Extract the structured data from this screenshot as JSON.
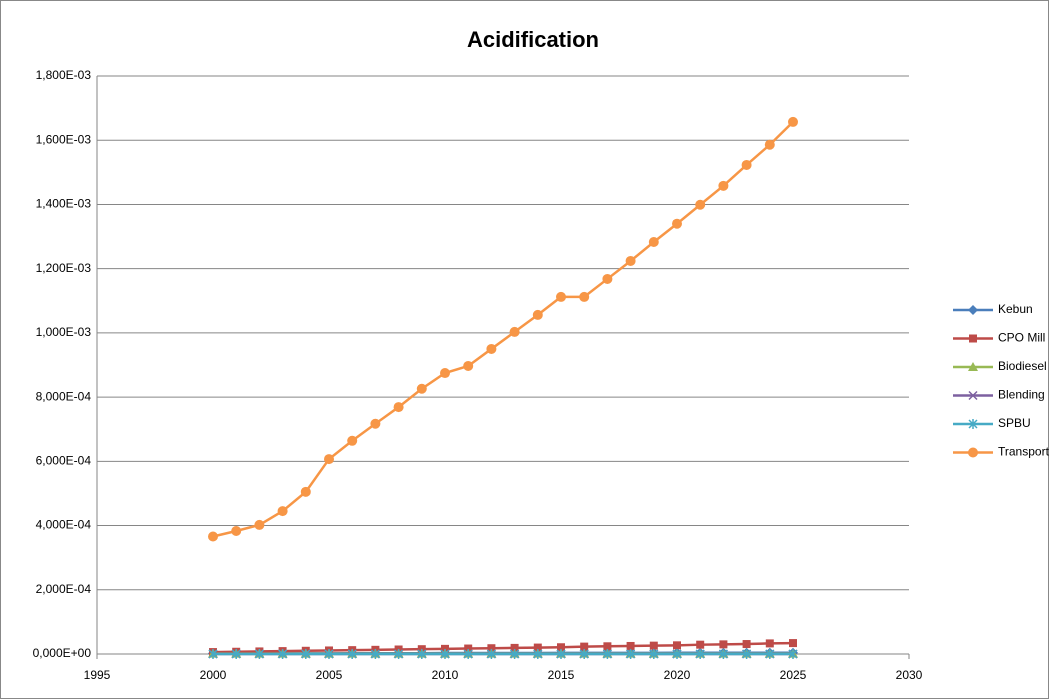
{
  "chart_data": {
    "type": "line",
    "title": "Acidification",
    "x": [
      2000,
      2001,
      2002,
      2003,
      2004,
      2005,
      2006,
      2007,
      2008,
      2009,
      2010,
      2011,
      2012,
      2013,
      2014,
      2015,
      2016,
      2017,
      2018,
      2019,
      2020,
      2021,
      2022,
      2023,
      2024,
      2025
    ],
    "xlim": [
      1995,
      2030
    ],
    "xticks": [
      1995,
      2000,
      2005,
      2010,
      2015,
      2020,
      2025,
      2030
    ],
    "ylim": [
      0,
      0.0018
    ],
    "yticks": [
      {
        "value": 0,
        "label": "0,000E+00"
      },
      {
        "value": 0.0002,
        "label": "2,000E-04"
      },
      {
        "value": 0.0004,
        "label": "4,000E-04"
      },
      {
        "value": 0.0006,
        "label": "6,000E-04"
      },
      {
        "value": 0.0008,
        "label": "8,000E-04"
      },
      {
        "value": 0.001,
        "label": "1,000E-03"
      },
      {
        "value": 0.0012,
        "label": "1,200E-03"
      },
      {
        "value": 0.0014,
        "label": "1,400E-03"
      },
      {
        "value": 0.0016,
        "label": "1,600E-03"
      },
      {
        "value": 0.0018,
        "label": "1,800E-03"
      }
    ],
    "grid": true,
    "legend": "right",
    "series": [
      {
        "name": "Kebun",
        "color": "#4a7ebb",
        "marker": "diamond",
        "values": [
          2e-06,
          2e-06,
          2e-06,
          2e-06,
          2e-06,
          2e-06,
          2.5e-06,
          2.5e-06,
          2.5e-06,
          2.5e-06,
          3e-06,
          3e-06,
          3e-06,
          3e-06,
          3e-06,
          3.5e-06,
          3.5e-06,
          3.5e-06,
          3.5e-06,
          3.5e-06,
          4e-06,
          4e-06,
          4e-06,
          4e-06,
          4e-06,
          4e-06
        ]
      },
      {
        "name": "CPO Mill",
        "color": "#be4b48",
        "marker": "square",
        "values": [
          6e-06,
          7e-06,
          8e-06,
          9e-06,
          1e-05,
          1.1e-05,
          1.2e-05,
          1.3e-05,
          1.4e-05,
          1.5e-05,
          1.6e-05,
          1.7e-05,
          1.8e-05,
          1.9e-05,
          2e-05,
          2.1e-05,
          2.3e-05,
          2.4e-05,
          2.5e-05,
          2.6e-05,
          2.7e-05,
          2.9e-05,
          3e-05,
          3.1e-05,
          3.3e-05,
          3.4e-05
        ]
      },
      {
        "name": "Biodiesel",
        "color": "#98b954",
        "marker": "triangle",
        "values": [
          1e-06,
          1e-06,
          1e-06,
          1e-06,
          1e-06,
          1e-06,
          1e-06,
          1e-06,
          1e-06,
          1e-06,
          1e-06,
          1e-06,
          1e-06,
          1e-06,
          1e-06,
          1e-06,
          1e-06,
          1e-06,
          1e-06,
          1e-06,
          1e-06,
          1e-06,
          1e-06,
          1e-06,
          1e-06,
          1e-06
        ]
      },
      {
        "name": "Blending",
        "color": "#7d60a0",
        "marker": "x",
        "values": [
          0,
          0,
          0,
          0,
          0,
          0,
          0,
          0,
          0,
          0,
          0,
          0,
          0,
          0,
          0,
          0,
          0,
          0,
          0,
          0,
          0,
          0,
          0,
          0,
          0,
          0
        ]
      },
      {
        "name": "SPBU",
        "color": "#46aac5",
        "marker": "star",
        "values": [
          0,
          0,
          0,
          0,
          0,
          0,
          0,
          0,
          0,
          0,
          0,
          0,
          0,
          0,
          0,
          0,
          0,
          0,
          0,
          0,
          0,
          0,
          0,
          0,
          0,
          0
        ]
      },
      {
        "name": "Transport",
        "color": "#f79646",
        "marker": "circle",
        "values": [
          0.000366,
          0.000383,
          0.000402,
          0.000445,
          0.000505,
          0.000607,
          0.000664,
          0.000717,
          0.000769,
          0.000826,
          0.000875,
          0.000897,
          0.00095,
          0.001003,
          0.001056,
          0.001112,
          0.001112,
          0.001168,
          0.001224,
          0.001283,
          0.00134,
          0.001399,
          0.001458,
          0.001523,
          0.001586,
          0.001657
        ]
      }
    ]
  }
}
